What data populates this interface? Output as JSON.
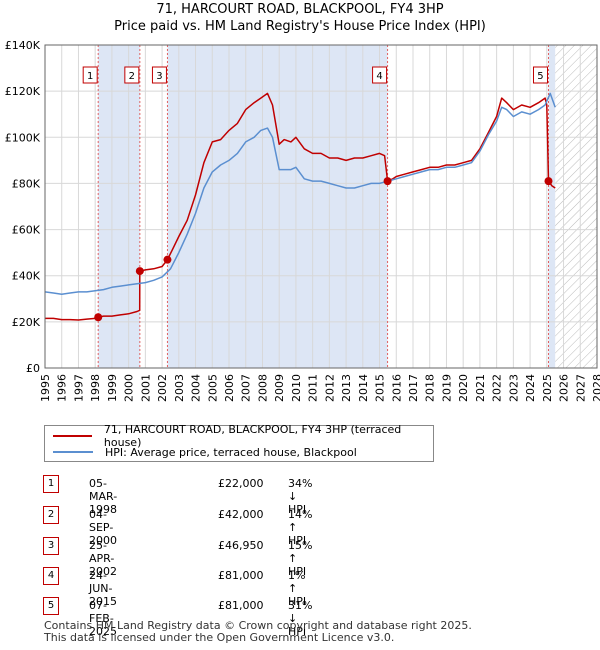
{
  "title_line1": "71, HARCOURT ROAD, BLACKPOOL, FY4 3HP",
  "title_line2": "Price paid vs. HM Land Registry's House Price Index (HPI)",
  "colors": {
    "property": "#c00000",
    "hpi": "#5b8fd0",
    "band": "#dde6f5",
    "grid": "#d8d8d8",
    "marker_line": "#e06060"
  },
  "legend": {
    "property_label": "71, HARCOURT ROAD, BLACKPOOL, FY4 3HP (terraced house)",
    "hpi_label": "HPI: Average price, terraced house, Blackpool"
  },
  "transactions": [
    {
      "num": "1",
      "date": "05-MAR-1998",
      "price": "£22,000",
      "hpi": "34% ↓ HPI"
    },
    {
      "num": "2",
      "date": "04-SEP-2000",
      "price": "£42,000",
      "hpi": "14% ↑ HPI"
    },
    {
      "num": "3",
      "date": "25-APR-2002",
      "price": "£46,950",
      "hpi": "15% ↑ HPI"
    },
    {
      "num": "4",
      "date": "24-JUN-2015",
      "price": "£81,000",
      "hpi": "1% ↑ HPI"
    },
    {
      "num": "5",
      "date": "07-FEB-2025",
      "price": "£81,000",
      "hpi": "31% ↓ HPI"
    }
  ],
  "footer_line1": "Contains HM Land Registry data © Crown copyright and database right 2025.",
  "footer_line2": "This data is licensed under the Open Government Licence v3.0.",
  "chart_data": {
    "type": "line",
    "title": "71, HARCOURT ROAD, BLACKPOOL, FY4 3HP — Price paid vs. HM Land Registry's House Price Index (HPI)",
    "xlabel": "",
    "ylabel": "",
    "xlim": [
      1995,
      2028
    ],
    "ylim": [
      0,
      140000
    ],
    "y_ticks": [
      0,
      20000,
      40000,
      60000,
      80000,
      100000,
      120000,
      140000
    ],
    "y_tick_labels": [
      "£0",
      "£20K",
      "£40K",
      "£60K",
      "£80K",
      "£100K",
      "£120K",
      "£140K"
    ],
    "x_ticks": [
      1995,
      1996,
      1997,
      1998,
      1999,
      2000,
      2001,
      2002,
      2003,
      2004,
      2005,
      2006,
      2007,
      2008,
      2009,
      2010,
      2011,
      2012,
      2013,
      2014,
      2015,
      2016,
      2017,
      2018,
      2019,
      2020,
      2021,
      2022,
      2023,
      2024,
      2025,
      2026,
      2027,
      2028
    ],
    "sale_events": [
      {
        "label": "1",
        "x": 1998.18,
        "y": 22000
      },
      {
        "label": "2",
        "x": 2000.67,
        "y": 42000
      },
      {
        "label": "3",
        "x": 2002.32,
        "y": 46950
      },
      {
        "label": "4",
        "x": 2015.48,
        "y": 81000
      },
      {
        "label": "5",
        "x": 2025.1,
        "y": 81000
      }
    ],
    "shaded_spans": [
      [
        1998.18,
        2000.67
      ],
      [
        2002.32,
        2015.48
      ],
      [
        2025.1,
        2025.5
      ]
    ],
    "hatched_future_from": 2025.5,
    "series": [
      {
        "name": "71, HARCOURT ROAD, BLACKPOOL, FY4 3HP (terraced house)",
        "color": "#c00000",
        "x": [
          1995.0,
          1995.5,
          1996.0,
          1996.5,
          1997.0,
          1997.5,
          1998.0,
          1998.18,
          1998.5,
          1999.0,
          1999.5,
          2000.0,
          2000.5,
          2000.66,
          2000.67,
          2001.0,
          2001.5,
          2002.0,
          2002.32,
          2002.6,
          2003.0,
          2003.5,
          2004.0,
          2004.5,
          2005.0,
          2005.5,
          2006.0,
          2006.5,
          2007.0,
          2007.5,
          2007.9,
          2008.3,
          2008.6,
          2009.0,
          2009.3,
          2009.7,
          2010.0,
          2010.5,
          2011.0,
          2011.5,
          2012.0,
          2012.5,
          2013.0,
          2013.5,
          2014.0,
          2014.5,
          2015.0,
          2015.3,
          2015.48,
          2015.8,
          2016.0,
          2016.5,
          2017.0,
          2017.5,
          2018.0,
          2018.5,
          2019.0,
          2019.5,
          2020.0,
          2020.5,
          2021.0,
          2021.5,
          2022.0,
          2022.3,
          2022.6,
          2023.0,
          2023.5,
          2024.0,
          2024.5,
          2024.9,
          2025.0,
          2025.1,
          2025.3,
          2025.5
        ],
        "y": [
          21500,
          21500,
          21000,
          21000,
          20800,
          21200,
          21500,
          22000,
          22500,
          22500,
          23000,
          23500,
          24500,
          25000,
          42000,
          42500,
          43000,
          44000,
          46950,
          51000,
          57000,
          64000,
          75000,
          89000,
          98000,
          99000,
          103000,
          106000,
          112000,
          115000,
          117000,
          119000,
          114000,
          97000,
          99000,
          98000,
          100000,
          95000,
          93000,
          93000,
          91000,
          91000,
          90000,
          91000,
          91000,
          92000,
          93000,
          92000,
          81000,
          82000,
          83000,
          84000,
          85000,
          86000,
          87000,
          87000,
          88000,
          88000,
          89000,
          90000,
          95000,
          102000,
          109000,
          117000,
          115000,
          112000,
          114000,
          113000,
          115000,
          117000,
          114000,
          81000,
          79000,
          78000
        ]
      },
      {
        "name": "HPI: Average price, terraced house, Blackpool",
        "color": "#5b8fd0",
        "x": [
          1995.0,
          1995.5,
          1996.0,
          1996.5,
          1997.0,
          1997.5,
          1998.0,
          1998.5,
          1999.0,
          1999.5,
          2000.0,
          2000.5,
          2001.0,
          2001.5,
          2002.0,
          2002.5,
          2003.0,
          2003.5,
          2004.0,
          2004.5,
          2005.0,
          2005.5,
          2006.0,
          2006.5,
          2007.0,
          2007.5,
          2007.9,
          2008.3,
          2008.6,
          2009.0,
          2009.3,
          2009.7,
          2010.0,
          2010.5,
          2011.0,
          2011.5,
          2012.0,
          2012.5,
          2013.0,
          2013.5,
          2014.0,
          2014.5,
          2015.0,
          2015.5,
          2016.0,
          2016.5,
          2017.0,
          2017.5,
          2018.0,
          2018.5,
          2019.0,
          2019.5,
          2020.0,
          2020.5,
          2021.0,
          2021.5,
          2022.0,
          2022.3,
          2022.6,
          2023.0,
          2023.5,
          2024.0,
          2024.5,
          2024.9,
          2025.2,
          2025.5
        ],
        "y": [
          33000,
          32500,
          32000,
          32500,
          33000,
          33000,
          33500,
          34000,
          35000,
          35500,
          36000,
          36500,
          37000,
          38000,
          39500,
          43000,
          50000,
          58000,
          67000,
          78000,
          85000,
          88000,
          90000,
          93000,
          98000,
          100000,
          103000,
          104000,
          100000,
          86000,
          86000,
          86000,
          87000,
          82000,
          81000,
          81000,
          80000,
          79000,
          78000,
          78000,
          79000,
          80000,
          80000,
          81000,
          82000,
          83000,
          84000,
          85000,
          86000,
          86000,
          87000,
          87000,
          88000,
          89000,
          94000,
          101000,
          107000,
          113000,
          112000,
          109000,
          111000,
          110000,
          112000,
          114000,
          119000,
          113000
        ]
      }
    ]
  }
}
